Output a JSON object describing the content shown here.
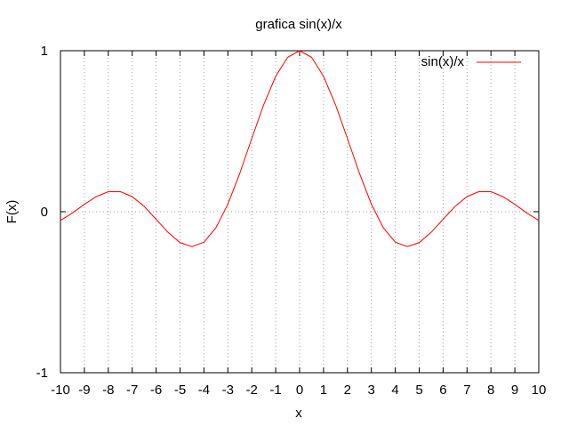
{
  "chart_data": {
    "type": "line",
    "title": "grafica sin(x)/x",
    "xlabel": "x",
    "ylabel": "F(x)",
    "xlim": [
      -10,
      10
    ],
    "ylim": [
      -1,
      1
    ],
    "x_ticks": [
      -10,
      -9,
      -8,
      -7,
      -6,
      -5,
      -4,
      -3,
      -2,
      -1,
      0,
      1,
      2,
      3,
      4,
      5,
      6,
      7,
      8,
      9,
      10
    ],
    "x_tick_labels": [
      "-10",
      "-9",
      "-8",
      "-7",
      "-6",
      "-5",
      "-4",
      "-3",
      "-2",
      "-1",
      "0",
      "1",
      "2",
      "3",
      "4",
      "5",
      "6",
      "7",
      "8",
      "9",
      "10"
    ],
    "y_ticks": [
      -1,
      0,
      1
    ],
    "y_tick_labels": [
      "-1",
      "0",
      "1"
    ],
    "grid": true,
    "legend_position": "top-right",
    "series": [
      {
        "name": "sin(x)/x",
        "color": "#ff0000",
        "x": [
          -10,
          -9.5,
          -9,
          -8.5,
          -8,
          -7.5,
          -7,
          -6.5,
          -6,
          -5.5,
          -5,
          -4.5,
          -4,
          -3.5,
          -3,
          -2.5,
          -2,
          -1.5,
          -1,
          -0.5,
          0,
          0.5,
          1,
          1.5,
          2,
          2.5,
          3,
          3.5,
          4,
          4.5,
          5,
          5.5,
          6,
          6.5,
          7,
          7.5,
          8,
          8.5,
          9,
          9.5,
          10
        ],
        "y": [
          -0.054,
          -0.008,
          0.046,
          0.094,
          0.124,
          0.125,
          0.094,
          0.033,
          -0.047,
          -0.128,
          -0.192,
          -0.217,
          -0.189,
          -0.1,
          0.047,
          0.239,
          0.455,
          0.665,
          0.841,
          0.959,
          1.0,
          0.959,
          0.841,
          0.665,
          0.455,
          0.239,
          0.047,
          -0.1,
          -0.189,
          -0.217,
          -0.192,
          -0.128,
          -0.047,
          0.033,
          0.094,
          0.125,
          0.124,
          0.094,
          0.046,
          -0.008,
          -0.054
        ]
      }
    ]
  }
}
